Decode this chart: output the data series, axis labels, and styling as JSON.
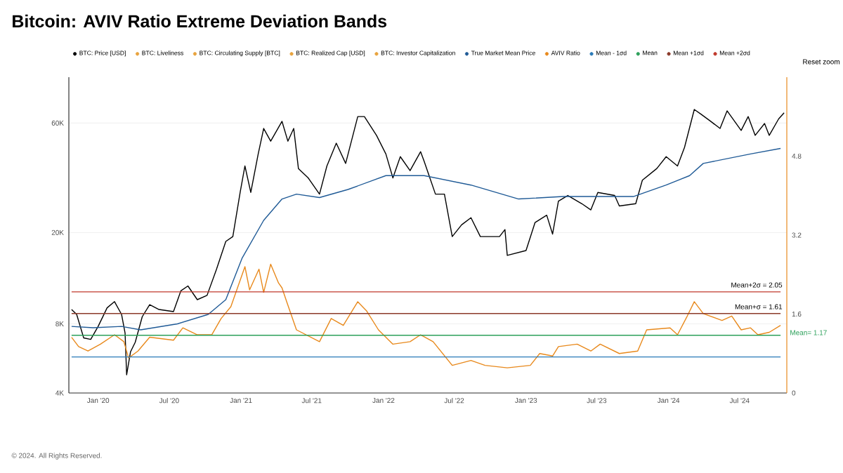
{
  "chart_data": {
    "type": "line",
    "title": "Bitcoin: AVIV Ratio Extreme Deviation Bands",
    "xlim": [
      "2019-10-18",
      "2024-10-30"
    ],
    "xticks": [
      {
        "value": "2020-01-01",
        "label": "Jan '20"
      },
      {
        "value": "2020-07-01",
        "label": "Jul '20"
      },
      {
        "value": "2021-01-01",
        "label": "Jan '21"
      },
      {
        "value": "2021-07-01",
        "label": "Jul '21"
      },
      {
        "value": "2022-01-01",
        "label": "Jan '22"
      },
      {
        "value": "2022-07-01",
        "label": "Jul '22"
      },
      {
        "value": "2023-01-01",
        "label": "Jan '23"
      },
      {
        "value": "2023-07-01",
        "label": "Jul '23"
      },
      {
        "value": "2024-01-01",
        "label": "Jan '24"
      },
      {
        "value": "2024-07-01",
        "label": "Jul '24"
      }
    ],
    "ylim": [
      4000,
      95000
    ],
    "yticks": [
      {
        "value": 4000,
        "label": "4K"
      },
      {
        "value": 8000,
        "label": "8K"
      },
      {
        "value": 20000,
        "label": "20K"
      },
      {
        "value": 60000,
        "label": "60K"
      }
    ],
    "y2lim": [
      0,
      6.4
    ],
    "y2ticks": [
      0,
      1.6,
      3.2,
      4.8
    ],
    "log": "y",
    "grid": "y",
    "legend": "top",
    "marker": "none",
    "line_style": "solid",
    "series": [
      {
        "name": "BTC: Price [USD]",
        "color": "#000000",
        "x": [
          "2019-10-25",
          "2019-11-07",
          "2019-11-25",
          "2019-12-13",
          "2020-01-01",
          "2020-01-24",
          "2020-02-12",
          "2020-03-01",
          "2020-03-10",
          "2020-03-14",
          "2020-03-24",
          "2020-04-05",
          "2020-04-23",
          "2020-05-12",
          "2020-06-05",
          "2020-07-12",
          "2020-07-31",
          "2020-08-18",
          "2020-09-11",
          "2020-10-06",
          "2020-10-30",
          "2020-11-23",
          "2020-12-11",
          "2020-12-30",
          "2021-01-11",
          "2021-01-26",
          "2021-02-14",
          "2021-02-28",
          "2021-03-18",
          "2021-04-16",
          "2021-05-01",
          "2021-05-16",
          "2021-05-28",
          "2021-06-22",
          "2021-07-21",
          "2021-08-09",
          "2021-09-02",
          "2021-09-26",
          "2021-10-27",
          "2021-11-13",
          "2021-12-14",
          "2022-01-07",
          "2022-01-25",
          "2022-02-13",
          "2022-03-10",
          "2022-04-06",
          "2022-04-15",
          "2022-05-14",
          "2022-06-06",
          "2022-06-26",
          "2022-07-20",
          "2022-08-13",
          "2022-09-06",
          "2022-10-25",
          "2022-11-08",
          "2022-11-14",
          "2023-01-01",
          "2023-01-24",
          "2023-02-23",
          "2023-03-10",
          "2023-03-25",
          "2023-04-18",
          "2023-05-24",
          "2023-06-16",
          "2023-07-04",
          "2023-08-16",
          "2023-08-28",
          "2023-10-09",
          "2023-10-26",
          "2023-12-02",
          "2023-12-26",
          "2024-01-24",
          "2024-02-11",
          "2024-03-07",
          "2024-03-24",
          "2024-04-18",
          "2024-05-12",
          "2024-05-30",
          "2024-07-05",
          "2024-07-23",
          "2024-08-10",
          "2024-09-03",
          "2024-09-15",
          "2024-10-09",
          "2024-10-23"
        ],
        "values": [
          9240,
          8800,
          6950,
          6850,
          7800,
          9400,
          10000,
          8800,
          7300,
          4800,
          6050,
          6650,
          8600,
          9700,
          9240,
          9050,
          11150,
          11700,
          10200,
          10650,
          13800,
          18300,
          19200,
          30100,
          39000,
          29900,
          44000,
          56800,
          50000,
          61000,
          50000,
          56800,
          38000,
          34600,
          29400,
          39000,
          49000,
          40000,
          64000,
          64000,
          53000,
          44000,
          34600,
          42800,
          37200,
          45000,
          40900,
          29400,
          29400,
          19200,
          21600,
          23200,
          19200,
          19200,
          20600,
          15900,
          16700,
          22100,
          23800,
          19700,
          27400,
          29000,
          26700,
          25100,
          29900,
          29000,
          26100,
          26700,
          33800,
          38000,
          42800,
          39000,
          47000,
          68700,
          65600,
          61000,
          56800,
          67800,
          55700,
          64000,
          53000,
          59700,
          53000,
          62500,
          66500
        ]
      },
      {
        "name": "BTC: Liveliness",
        "color": "#e8a33d"
      },
      {
        "name": "BTC: Circulating Supply [BTC]",
        "color": "#e8a33d"
      },
      {
        "name": "BTC: Realized Cap [USD]",
        "color": "#e8a33d"
      },
      {
        "name": "BTC: Investor Capitalization",
        "color": "#e8a33d"
      },
      {
        "name": "True Market Mean Price",
        "color": "#1f5a96",
        "x": [
          "2019-10-25",
          "2019-12-19",
          "2020-03-01",
          "2020-04-19",
          "2020-07-22",
          "2020-10-09",
          "2020-11-23",
          "2021-01-04",
          "2021-02-28",
          "2021-04-16",
          "2021-05-23",
          "2021-07-21",
          "2021-10-02",
          "2022-01-07",
          "2022-04-15",
          "2022-08-13",
          "2022-12-13",
          "2023-04-06",
          "2023-10-03",
          "2023-12-26",
          "2024-02-24",
          "2024-03-30",
          "2024-07-29",
          "2024-10-14"
        ],
        "values": [
          7800,
          7700,
          7800,
          7540,
          8000,
          8800,
          10200,
          15500,
          22600,
          28000,
          29400,
          28400,
          30800,
          35400,
          35400,
          32200,
          28000,
          28700,
          28700,
          32200,
          35400,
          40000,
          44000,
          46500
        ]
      },
      {
        "name": "AVIV Ratio",
        "color": "#e8891c",
        "axis": "y2",
        "x": [
          "2019-10-25",
          "2019-11-12",
          "2019-12-06",
          "2020-01-07",
          "2020-02-12",
          "2020-03-07",
          "2020-03-19",
          "2020-04-12",
          "2020-05-12",
          "2020-07-12",
          "2020-08-05",
          "2020-09-11",
          "2020-10-18",
          "2020-11-11",
          "2020-12-06",
          "2021-01-11",
          "2021-01-23",
          "2021-02-16",
          "2021-02-28",
          "2021-03-18",
          "2021-04-07",
          "2021-04-16",
          "2021-04-28",
          "2021-05-23",
          "2021-07-21",
          "2021-08-20",
          "2021-09-20",
          "2021-10-27",
          "2021-11-19",
          "2021-12-19",
          "2022-01-25",
          "2022-03-10",
          "2022-04-06",
          "2022-05-08",
          "2022-06-26",
          "2022-08-13",
          "2022-09-18",
          "2022-11-14",
          "2023-01-12",
          "2023-02-05",
          "2023-03-10",
          "2023-03-25",
          "2023-05-12",
          "2023-06-16",
          "2023-07-10",
          "2023-08-28",
          "2023-10-14",
          "2023-11-06",
          "2024-01-05",
          "2024-01-24",
          "2024-02-18",
          "2024-03-07",
          "2024-03-30",
          "2024-05-17",
          "2024-06-11",
          "2024-07-05",
          "2024-07-29",
          "2024-08-17",
          "2024-09-15",
          "2024-10-14"
        ],
        "values": [
          1.13,
          0.94,
          0.85,
          0.99,
          1.18,
          1.04,
          0.71,
          0.85,
          1.13,
          1.07,
          1.32,
          1.18,
          1.18,
          1.51,
          1.75,
          2.56,
          2.09,
          2.51,
          2.04,
          2.61,
          2.23,
          2.13,
          1.85,
          1.28,
          1.04,
          1.51,
          1.37,
          1.85,
          1.66,
          1.28,
          0.99,
          1.04,
          1.18,
          1.04,
          0.56,
          0.66,
          0.56,
          0.51,
          0.56,
          0.8,
          0.75,
          0.94,
          0.99,
          0.85,
          0.99,
          0.8,
          0.85,
          1.28,
          1.32,
          1.18,
          1.56,
          1.85,
          1.61,
          1.47,
          1.56,
          1.28,
          1.32,
          1.18,
          1.23,
          1.37
        ]
      },
      {
        "name": "Mean - 1σd",
        "color": "#2a7ab8",
        "axis": "y2",
        "x": [
          "2019-10-25",
          "2024-10-14"
        ],
        "values": [
          0.73,
          0.73
        ]
      },
      {
        "name": "Mean",
        "color": "#2ca05a",
        "axis": "y2",
        "x": [
          "2019-10-25",
          "2024-10-14"
        ],
        "values": [
          1.17,
          1.17
        ]
      },
      {
        "name": "Mean +1σd",
        "color": "#8b3a2a",
        "axis": "y2",
        "x": [
          "2019-10-25",
          "2024-10-14"
        ],
        "values": [
          1.61,
          1.61
        ]
      },
      {
        "name": "Mean +2σd",
        "color": "#c0392b",
        "axis": "y2",
        "x": [
          "2019-10-25",
          "2024-10-14"
        ],
        "values": [
          2.05,
          2.05
        ]
      }
    ],
    "annotations": [
      "Mean+2σ = 2.05",
      "Mean+σ = 1.61",
      "Mean= 1.17",
      "Reset zoom",
      "© 2024. All Rights Reserved."
    ]
  }
}
